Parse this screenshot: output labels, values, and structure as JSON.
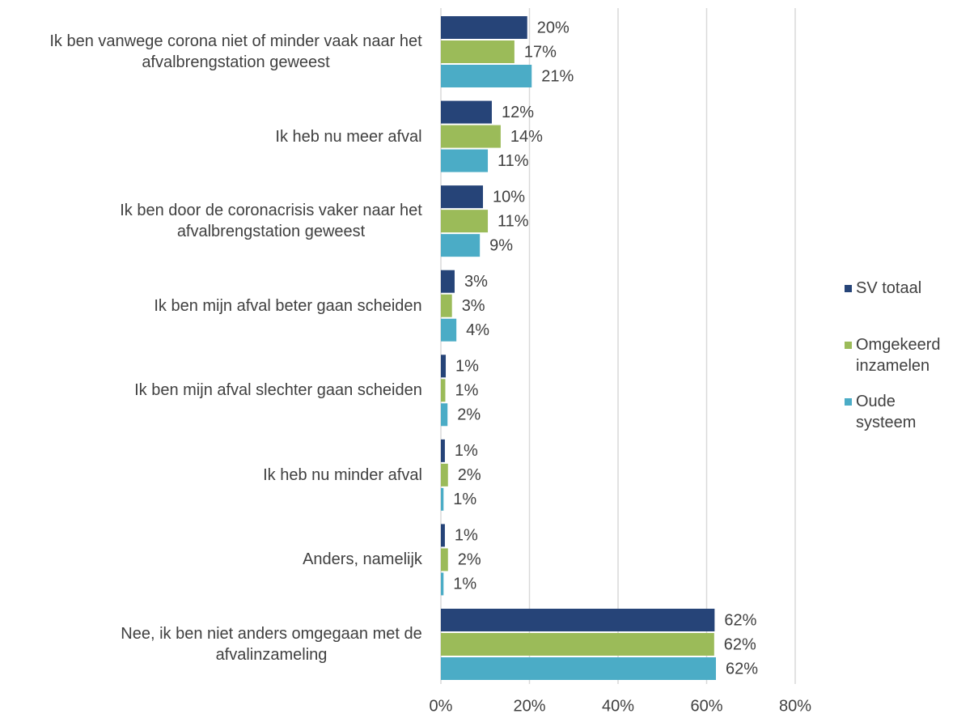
{
  "chart_data": {
    "type": "barh",
    "categories": [
      "Ik ben vanwege corona niet of minder vaak naar het afvalbrengstation geweest",
      "Ik heb nu meer afval",
      "Ik ben door de coronacrisis vaker naar het afvalbrengstation geweest",
      "Ik ben mijn afval beter gaan scheiden",
      "Ik ben mijn afval slechter gaan scheiden",
      "Ik heb nu minder afval",
      "Anders, namelijk",
      "Nee, ik ben niet anders omgegaan met de afvalinzameling"
    ],
    "series": [
      {
        "name": "SV totaal",
        "color": "#264478",
        "values": [
          19.5,
          11.5,
          9.5,
          3.1,
          1.1,
          0.9,
          0.9,
          61.8
        ],
        "value_labels": [
          "20%",
          "12%",
          "10%",
          "3%",
          "1%",
          "1%",
          "1%",
          "62%"
        ]
      },
      {
        "name": "Omgekeerd inzamelen",
        "color": "#9bbb59",
        "values": [
          16.6,
          13.5,
          10.6,
          2.5,
          1.0,
          1.6,
          1.6,
          61.7
        ],
        "value_labels": [
          "17%",
          "14%",
          "11%",
          "3%",
          "1%",
          "2%",
          "2%",
          "62%"
        ]
      },
      {
        "name": "Oude systeem",
        "color": "#4bacc6",
        "values": [
          20.5,
          10.6,
          8.8,
          3.5,
          1.5,
          0.6,
          0.6,
          62.1
        ],
        "value_labels": [
          "21%",
          "11%",
          "9%",
          "4%",
          "2%",
          "1%",
          "1%",
          "62%"
        ]
      }
    ],
    "xlim": [
      0,
      80
    ],
    "xticks": [
      {
        "value": 0,
        "label": "0%"
      },
      {
        "value": 20,
        "label": "20%"
      },
      {
        "value": 40,
        "label": "40%"
      },
      {
        "value": 60,
        "label": "60%"
      },
      {
        "value": 80,
        "label": "80%"
      }
    ],
    "grid": true,
    "legend": "right"
  }
}
